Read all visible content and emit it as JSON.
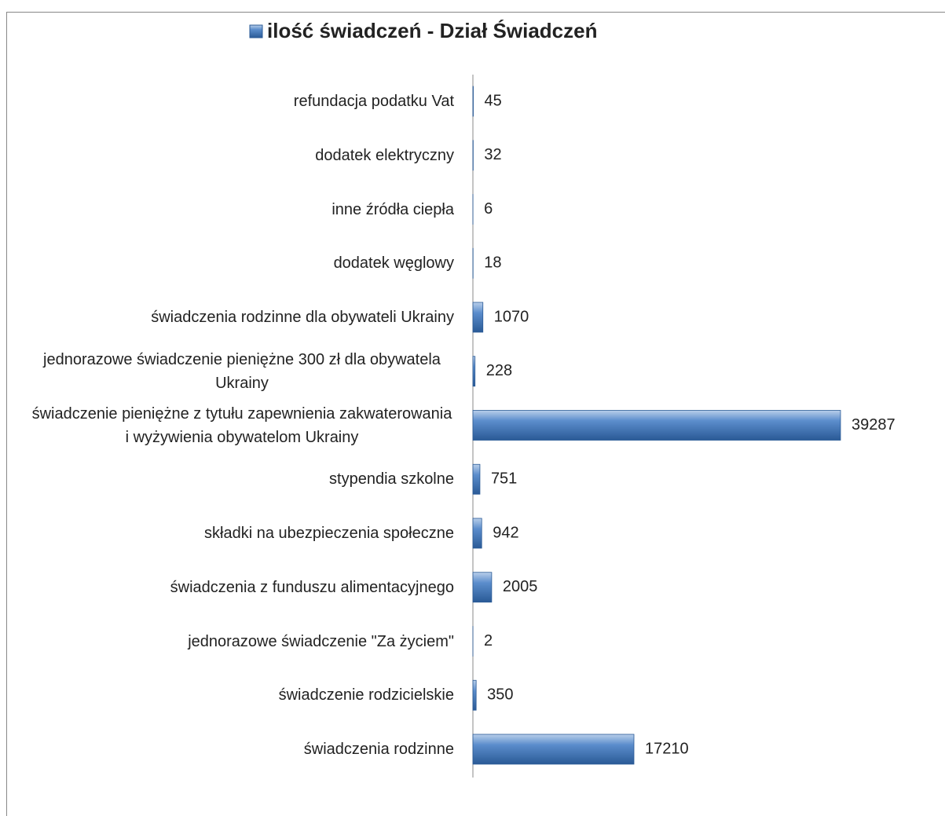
{
  "chart_data": {
    "type": "bar",
    "orientation": "horizontal",
    "series": [
      {
        "name": "ilość świadczeń - Dział Świadczeń",
        "color": "#4a7ebb",
        "values": [
          45,
          32,
          6,
          18,
          1070,
          228,
          39287,
          751,
          942,
          2005,
          2,
          350,
          17210
        ]
      }
    ],
    "categories": [
      "refundacja podatku Vat",
      "dodatek elektryczny",
      "inne źródła ciepła",
      "dodatek węglowy",
      "świadczenia rodzinne dla obywateli Ukrainy",
      "jednorazowe świadczenie pieniężne 300 zł dla obywatela Ukrainy",
      "świadczenie pieniężne z tytułu zapewnienia zakwaterowania i wyżywienia obywatelom Ukrainy",
      "stypendia szkolne",
      "składki na ubezpieczenia społeczne",
      "świadczenia z funduszu alimentacyjnego",
      "jednorazowe świadczenie \"Za życiem\"",
      "świadczenie rodzicielskie",
      "świadczenia rodzinne"
    ],
    "legend": "top"
  }
}
